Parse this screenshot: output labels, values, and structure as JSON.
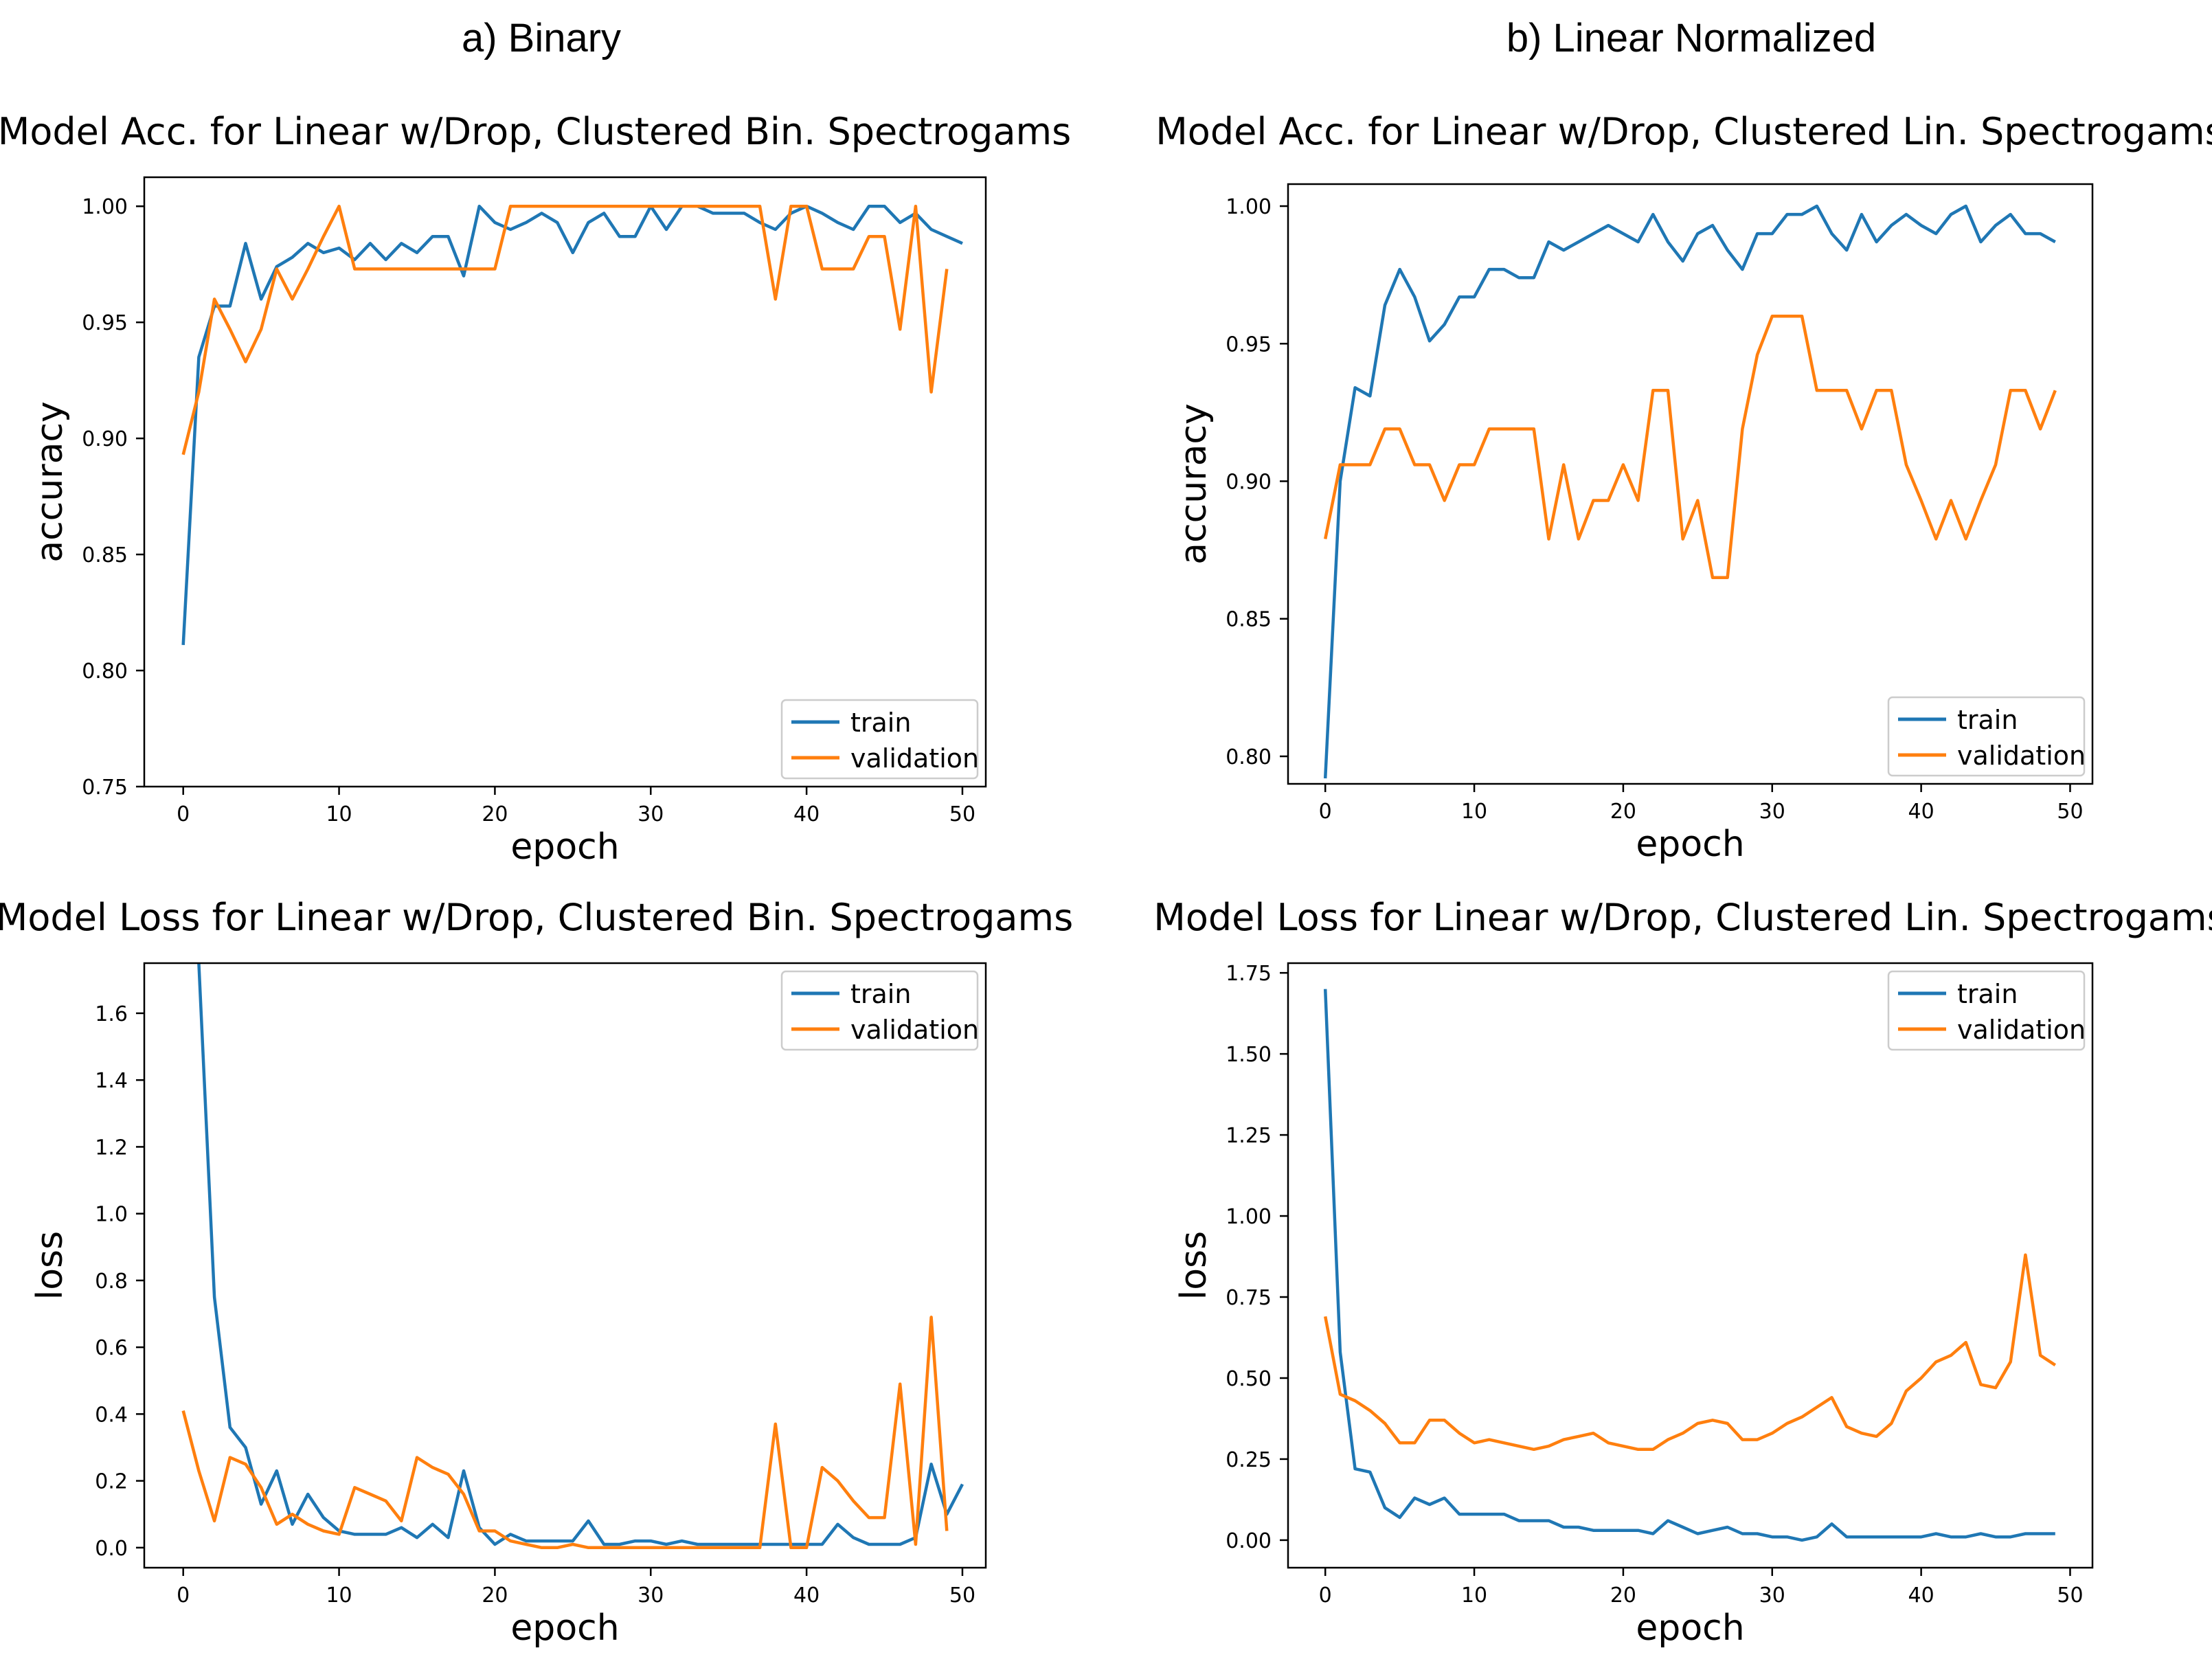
{
  "column_labels": {
    "a": "a) Binary",
    "b": "b) Linear Normalized"
  },
  "legend": {
    "train": "train",
    "validation": "validation"
  },
  "colors": {
    "train": "#1f77b4",
    "validation": "#ff7f0e",
    "axes": "#000000"
  },
  "chart_data": [
    {
      "id": "acc-bin",
      "type": "line",
      "title": "Model Acc. for Linear w/Drop, Clustered Bin. Spectrogams",
      "xlabel": "epoch",
      "ylabel": "accuracy",
      "xlim": [
        -2.5,
        51.5
      ],
      "ylim": [
        0.75,
        1.0125
      ],
      "xticks": [
        0,
        10,
        20,
        30,
        40,
        50
      ],
      "yticks": [
        0.75,
        0.8,
        0.85,
        0.9,
        0.95,
        1.0
      ],
      "ytick_labels": [
        "0.75",
        "0.80",
        "0.85",
        "0.90",
        "0.95",
        "1.00"
      ],
      "legend_loc": "lower right",
      "series": [
        {
          "name": "train",
          "values": [
            0.811,
            0.935,
            0.957,
            0.957,
            0.984,
            0.96,
            0.974,
            0.978,
            0.984,
            0.98,
            0.982,
            0.977,
            0.984,
            0.977,
            0.984,
            0.98,
            0.987,
            0.987,
            0.97,
            1.0,
            0.993,
            0.99,
            0.993,
            0.997,
            0.993,
            0.98,
            0.993,
            0.997,
            0.987,
            0.987,
            1.0,
            0.99,
            1.0,
            1.0,
            0.997,
            0.997,
            0.997,
            0.993,
            0.99,
            0.997,
            1.0,
            0.997,
            0.993,
            0.99,
            1.0,
            1.0,
            0.993,
            0.997,
            0.99,
            0.987,
            0.984
          ]
        },
        {
          "name": "validation",
          "values": [
            0.893,
            0.92,
            0.96,
            0.947,
            0.933,
            0.947,
            0.973,
            0.96,
            0.973,
            0.987,
            1.0,
            0.973,
            0.973,
            0.973,
            0.973,
            0.973,
            0.973,
            0.973,
            0.973,
            0.973,
            0.973,
            1.0,
            1.0,
            1.0,
            1.0,
            1.0,
            1.0,
            1.0,
            1.0,
            1.0,
            1.0,
            1.0,
            1.0,
            1.0,
            1.0,
            1.0,
            1.0,
            1.0,
            0.96,
            1.0,
            1.0,
            0.973,
            0.973,
            0.973,
            0.987,
            0.987,
            0.947,
            1.0,
            0.92,
            0.973
          ]
        }
      ]
    },
    {
      "id": "acc-lin",
      "type": "line",
      "title": "Model Acc. for Linear w/Drop, Clustered Lin. Spectrogams",
      "xlabel": "epoch",
      "ylabel": "accuracy",
      "xlim": [
        -2.5,
        51.5
      ],
      "ylim": [
        0.79,
        1.008
      ],
      "xticks": [
        0,
        10,
        20,
        30,
        40,
        50
      ],
      "yticks": [
        0.8,
        0.85,
        0.9,
        0.95,
        1.0
      ],
      "ytick_labels": [
        "0.80",
        "0.85",
        "0.90",
        "0.95",
        "1.00"
      ],
      "legend_loc": "lower right",
      "series": [
        {
          "name": "train",
          "values": [
            0.792,
            0.9,
            0.934,
            0.931,
            0.964,
            0.977,
            0.967,
            0.951,
            0.957,
            0.967,
            0.967,
            0.977,
            0.977,
            0.974,
            0.974,
            0.987,
            0.984,
            0.987,
            0.99,
            0.993,
            0.99,
            0.987,
            0.997,
            0.987,
            0.98,
            0.99,
            0.993,
            0.984,
            0.977,
            0.99,
            0.99,
            0.997,
            0.997,
            1.0,
            0.99,
            0.984,
            0.997,
            0.987,
            0.993,
            0.997,
            0.993,
            0.99,
            0.997,
            1.0,
            0.987,
            0.993,
            0.997,
            0.99,
            0.99,
            0.987
          ]
        },
        {
          "name": "validation",
          "values": [
            0.879,
            0.906,
            0.906,
            0.906,
            0.919,
            0.919,
            0.906,
            0.906,
            0.893,
            0.906,
            0.906,
            0.919,
            0.919,
            0.919,
            0.919,
            0.879,
            0.906,
            0.879,
            0.893,
            0.893,
            0.906,
            0.893,
            0.933,
            0.933,
            0.879,
            0.893,
            0.865,
            0.865,
            0.919,
            0.946,
            0.96,
            0.96,
            0.96,
            0.933,
            0.933,
            0.933,
            0.919,
            0.933,
            0.933,
            0.906,
            0.893,
            0.879,
            0.893,
            0.879,
            0.893,
            0.906,
            0.933,
            0.933,
            0.919,
            0.933
          ]
        }
      ]
    },
    {
      "id": "loss-bin",
      "type": "line",
      "title": "Model Loss for Linear w/Drop, Clustered Bin. Spectrogams",
      "xlabel": "epoch",
      "ylabel": "loss",
      "xlim": [
        -2.5,
        51.5
      ],
      "ylim": [
        -0.06,
        1.75
      ],
      "xticks": [
        0,
        10,
        20,
        30,
        40,
        50
      ],
      "yticks": [
        0.0,
        0.2,
        0.4,
        0.6,
        0.8,
        1.0,
        1.2,
        1.4,
        1.6
      ],
      "ytick_labels": [
        "0.0",
        "0.2",
        "0.4",
        "0.6",
        "0.8",
        "1.0",
        "1.2",
        "1.4",
        "1.6"
      ],
      "legend_loc": "upper right",
      "series": [
        {
          "name": "train",
          "values": [
            null,
            1.75,
            0.75,
            0.36,
            0.3,
            0.13,
            0.23,
            0.07,
            0.16,
            0.09,
            0.05,
            0.04,
            0.04,
            0.04,
            0.06,
            0.03,
            0.07,
            0.03,
            0.23,
            0.06,
            0.01,
            0.04,
            0.02,
            0.02,
            0.02,
            0.02,
            0.08,
            0.01,
            0.01,
            0.02,
            0.02,
            0.01,
            0.02,
            0.01,
            0.01,
            0.01,
            0.01,
            0.01,
            0.01,
            0.01,
            0.01,
            0.01,
            0.07,
            0.03,
            0.01,
            0.01,
            0.01,
            0.03,
            0.25,
            0.1,
            0.19
          ]
        },
        {
          "name": "validation",
          "values": [
            0.41,
            0.23,
            0.08,
            0.27,
            0.25,
            0.18,
            0.07,
            0.1,
            0.07,
            0.05,
            0.04,
            0.18,
            0.16,
            0.14,
            0.08,
            0.27,
            0.24,
            0.22,
            0.16,
            0.05,
            0.05,
            0.02,
            0.01,
            0.0,
            0.0,
            0.01,
            0.0,
            0.0,
            0.0,
            0.0,
            0.0,
            0.0,
            0.0,
            0.0,
            0.0,
            0.0,
            0.0,
            0.0,
            0.37,
            0.0,
            0.0,
            0.24,
            0.2,
            0.14,
            0.09,
            0.09,
            0.49,
            0.01,
            0.69,
            0.05
          ]
        }
      ]
    },
    {
      "id": "loss-lin",
      "type": "line",
      "title": "Model Loss for Linear w/Drop, Clustered Lin. Spectrogams",
      "xlabel": "epoch",
      "ylabel": "loss",
      "xlim": [
        -2.5,
        51.5
      ],
      "ylim": [
        -0.085,
        1.78
      ],
      "xticks": [
        0,
        10,
        20,
        30,
        40,
        50
      ],
      "yticks": [
        0.0,
        0.25,
        0.5,
        0.75,
        1.0,
        1.25,
        1.5,
        1.75
      ],
      "ytick_labels": [
        "0.00",
        "0.25",
        "0.50",
        "0.75",
        "1.00",
        "1.25",
        "1.50",
        "1.75"
      ],
      "legend_loc": "upper right",
      "series": [
        {
          "name": "train",
          "values": [
            1.7,
            0.58,
            0.22,
            0.21,
            0.1,
            0.07,
            0.13,
            0.11,
            0.13,
            0.08,
            0.08,
            0.08,
            0.08,
            0.06,
            0.06,
            0.06,
            0.04,
            0.04,
            0.03,
            0.03,
            0.03,
            0.03,
            0.02,
            0.06,
            0.04,
            0.02,
            0.03,
            0.04,
            0.02,
            0.02,
            0.01,
            0.01,
            0.0,
            0.01,
            0.05,
            0.01,
            0.01,
            0.01,
            0.01,
            0.01,
            0.01,
            0.02,
            0.01,
            0.01,
            0.02,
            0.01,
            0.01,
            0.02,
            0.02,
            0.02
          ]
        },
        {
          "name": "validation",
          "values": [
            0.69,
            0.45,
            0.43,
            0.4,
            0.36,
            0.3,
            0.3,
            0.37,
            0.37,
            0.33,
            0.3,
            0.31,
            0.3,
            0.29,
            0.28,
            0.29,
            0.31,
            0.32,
            0.33,
            0.3,
            0.29,
            0.28,
            0.28,
            0.31,
            0.33,
            0.36,
            0.37,
            0.36,
            0.31,
            0.31,
            0.33,
            0.36,
            0.38,
            0.41,
            0.44,
            0.35,
            0.33,
            0.32,
            0.36,
            0.46,
            0.5,
            0.55,
            0.57,
            0.61,
            0.48,
            0.47,
            0.55,
            0.88,
            0.57,
            0.54
          ]
        }
      ]
    }
  ]
}
